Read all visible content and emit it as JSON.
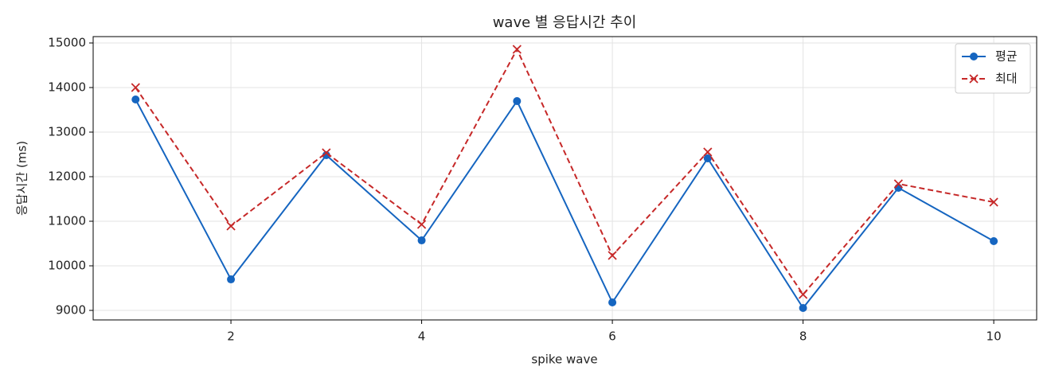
{
  "chart_data": {
    "type": "line",
    "title": "wave 별 응답시간 추이",
    "xlabel": "spike wave",
    "ylabel": "응답시간 (ms)",
    "x": [
      1,
      2,
      3,
      4,
      5,
      6,
      7,
      8,
      9,
      10
    ],
    "series": [
      {
        "name": "평균",
        "color": "#1565c0",
        "marker": "circle",
        "linestyle": "solid",
        "values": [
          13732,
          9696,
          12482,
          10571,
          13696,
          9179,
          12411,
          9054,
          11750,
          10554
        ]
      },
      {
        "name": "최대",
        "color": "#c62828",
        "marker": "x",
        "linestyle": "dashed",
        "values": [
          14000,
          10893,
          12536,
          10929,
          14857,
          10232,
          12554,
          9357,
          11839,
          11429
        ]
      }
    ],
    "xlim": [
      0.555,
      10.45
    ],
    "ylim": [
      8786,
      15143
    ],
    "xticks": [
      2,
      4,
      6,
      8,
      10
    ],
    "yticks": [
      9000,
      10000,
      11000,
      12000,
      13000,
      14000,
      15000
    ],
    "grid": true,
    "legend": "upper right"
  }
}
